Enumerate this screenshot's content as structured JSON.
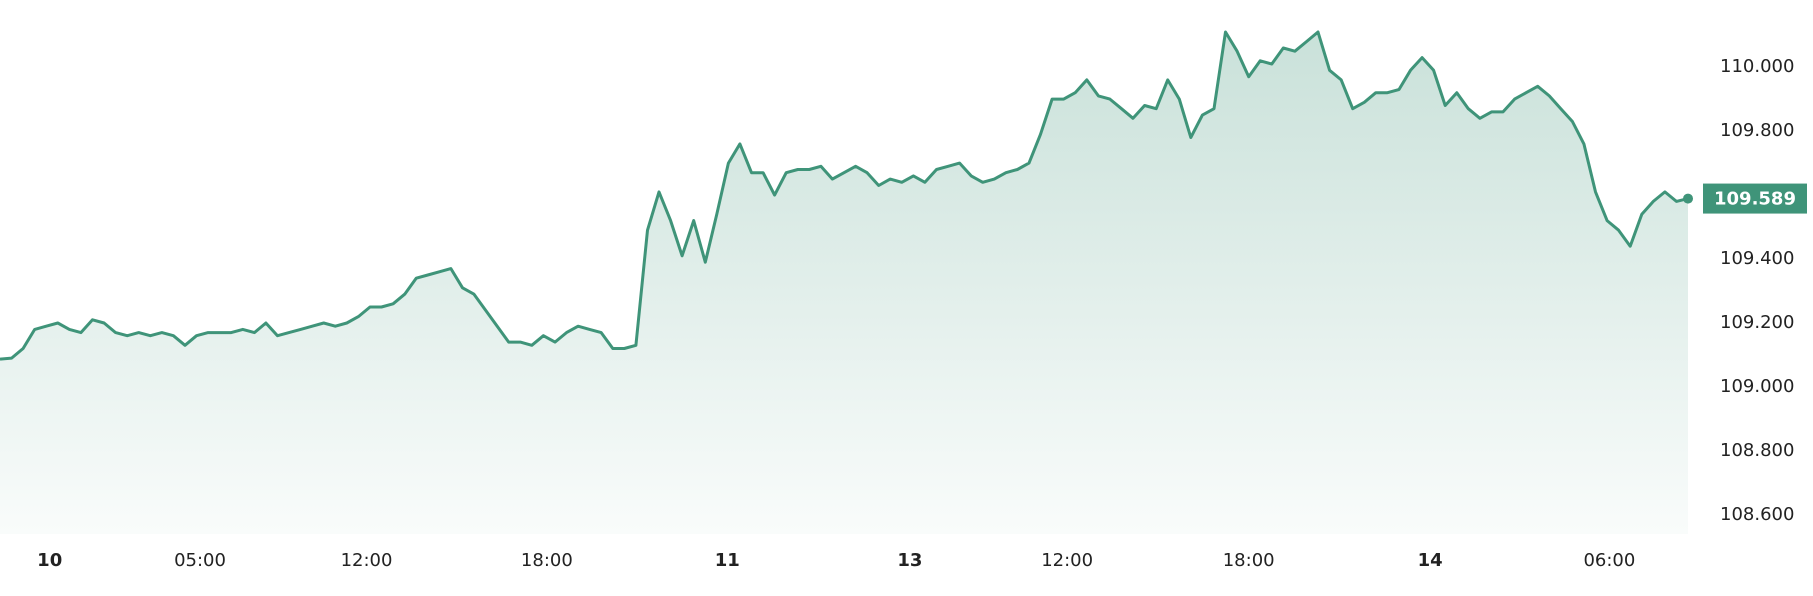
{
  "chart_data": {
    "type": "area",
    "color": "#3f9479",
    "values": [
      109.087,
      109.09,
      109.12,
      109.18,
      109.19,
      109.2,
      109.18,
      109.17,
      109.21,
      109.2,
      109.17,
      109.16,
      109.17,
      109.16,
      109.17,
      109.16,
      109.13,
      109.16,
      109.17,
      109.17,
      109.17,
      109.18,
      109.17,
      109.2,
      109.16,
      109.17,
      109.18,
      109.19,
      109.2,
      109.19,
      109.2,
      109.22,
      109.25,
      109.25,
      109.26,
      109.29,
      109.34,
      109.35,
      109.36,
      109.37,
      109.31,
      109.29,
      109.24,
      109.19,
      109.14,
      109.14,
      109.13,
      109.16,
      109.14,
      109.17,
      109.19,
      109.18,
      109.17,
      109.12,
      109.12,
      109.13,
      109.49,
      109.61,
      109.52,
      109.41,
      109.52,
      109.39,
      109.54,
      109.7,
      109.76,
      109.67,
      109.67,
      109.6,
      109.67,
      109.68,
      109.68,
      109.69,
      109.65,
      109.67,
      109.69,
      109.67,
      109.63,
      109.65,
      109.64,
      109.66,
      109.64,
      109.68,
      109.69,
      109.7,
      109.66,
      109.64,
      109.65,
      109.67,
      109.68,
      109.7,
      109.79,
      109.9,
      109.9,
      109.92,
      109.96,
      109.91,
      109.9,
      109.87,
      109.84,
      109.88,
      109.87,
      109.96,
      109.9,
      109.78,
      109.85,
      109.87,
      110.11,
      110.05,
      109.97,
      110.02,
      110.01,
      110.06,
      110.05,
      110.08,
      110.11,
      109.99,
      109.96,
      109.87,
      109.89,
      109.92,
      109.92,
      109.93,
      109.99,
      110.03,
      109.99,
      109.88,
      109.92,
      109.87,
      109.84,
      109.86,
      109.86,
      109.9,
      109.92,
      109.94,
      109.91,
      109.87,
      109.83,
      109.76,
      109.61,
      109.52,
      109.49,
      109.44,
      109.54,
      109.58,
      109.61,
      109.58,
      109.589
    ],
    "xlim": [
      0,
      146
    ],
    "xticks": [
      {
        "value": 4.3,
        "label": "10"
      },
      {
        "value": 17.3,
        "label": "05:00"
      },
      {
        "value": 31.7,
        "label": "12:00"
      },
      {
        "value": 47.3,
        "label": "18:00"
      },
      {
        "value": 62.9,
        "label": "11"
      },
      {
        "value": 78.7,
        "label": "13"
      },
      {
        "value": 92.3,
        "label": "12:00"
      },
      {
        "value": 108,
        "label": "18:00"
      },
      {
        "value": 123.7,
        "label": "14"
      },
      {
        "value": 139.2,
        "label": "06:00"
      }
    ],
    "ylim": [
      108.54,
      110.21
    ],
    "yticks": [
      {
        "value": 108.6,
        "label": "108.600"
      },
      {
        "value": 108.8,
        "label": "108.800"
      },
      {
        "value": 109,
        "label": "109.000"
      },
      {
        "value": 109.2,
        "label": "109.200"
      },
      {
        "value": 109.4,
        "label": "109.400"
      },
      {
        "value": 109.8,
        "label": "109.800"
      },
      {
        "value": 110,
        "label": "110.000"
      }
    ],
    "last_price": {
      "value": 109.589,
      "label": "109.589"
    }
  }
}
